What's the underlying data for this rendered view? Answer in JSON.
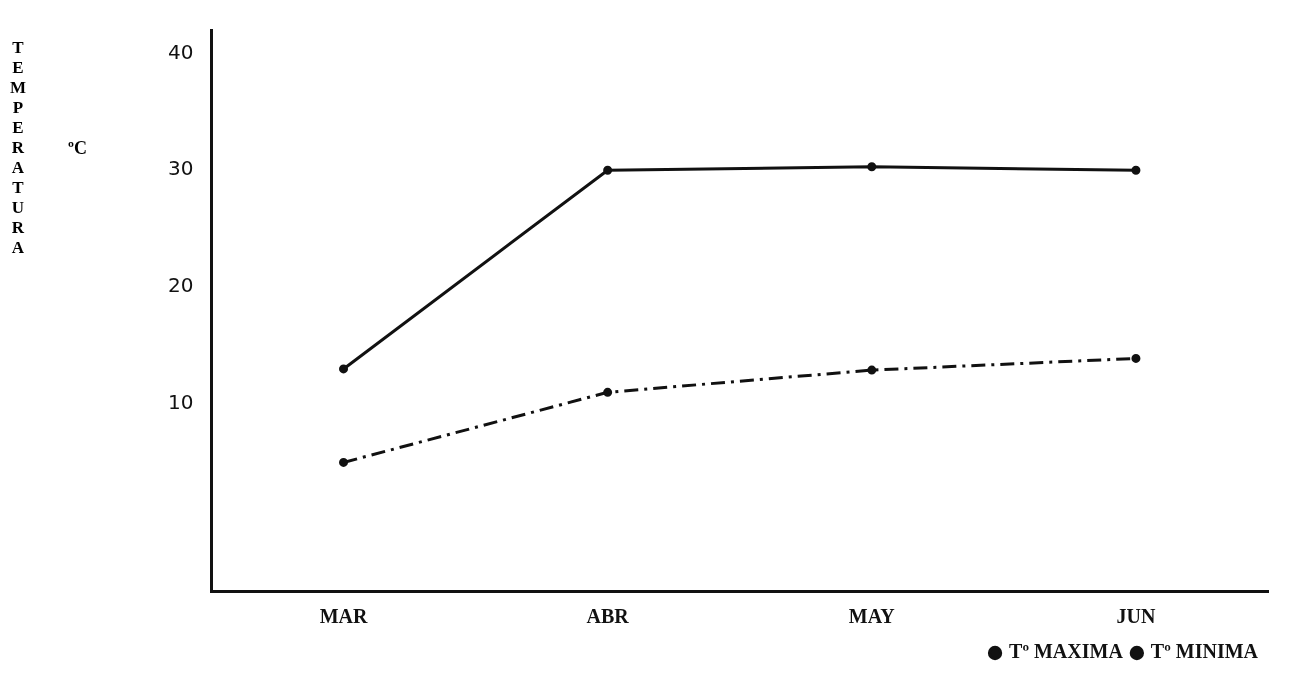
{
  "chart_data": {
    "type": "line",
    "ylabel": "TEMPERATURA",
    "annotations": [
      "ºC"
    ],
    "categories": [
      "MAR",
      "ABR",
      "MAY",
      "JUN"
    ],
    "series": [
      {
        "name": "Tº MAXIMA",
        "color": "#111111",
        "values": [
          13,
          30,
          30.3,
          30
        ],
        "line_style": "solid"
      },
      {
        "name": "Tº MINIMA",
        "color": "#111111",
        "values": [
          5,
          11,
          12.9,
          13.9
        ],
        "line_style": "dashed"
      }
    ],
    "ylim": [
      -6,
      42
    ],
    "yticks": [
      10,
      20,
      30,
      40
    ],
    "grid": false,
    "legend": "bottom right",
    "marker": "circle"
  }
}
